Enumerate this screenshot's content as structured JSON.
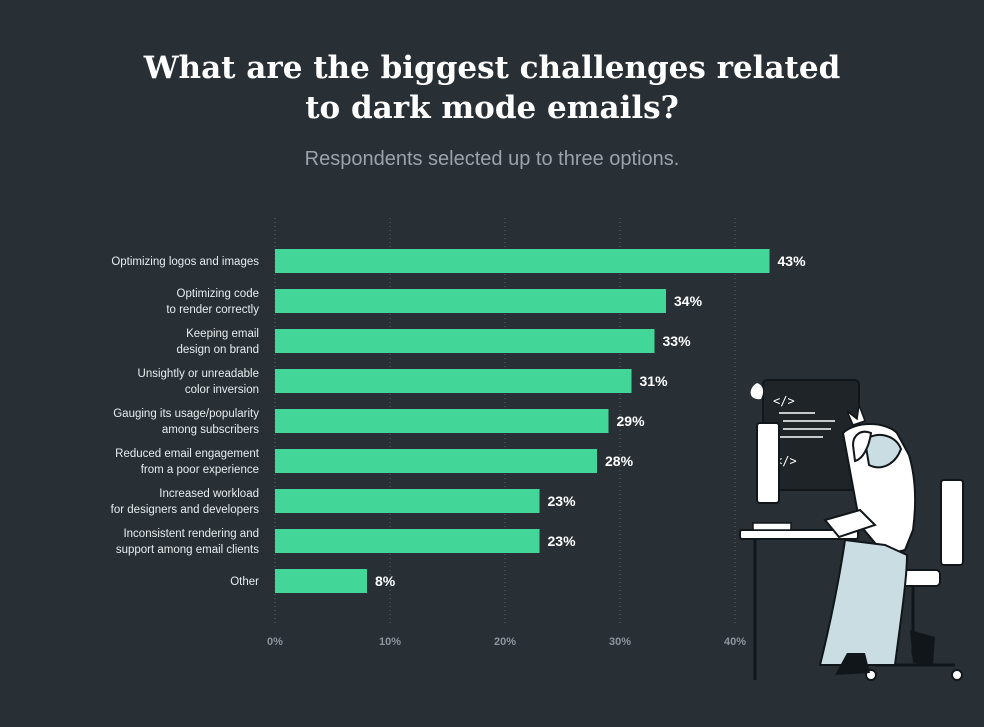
{
  "title_line1": "What are the biggest challenges related",
  "title_line2": "to dark mode emails?",
  "subtitle": "Respondents selected up to three options.",
  "colors": {
    "background": "#283036",
    "bar": "#43d699",
    "grid": "#5a646b"
  },
  "chart_data": {
    "type": "bar",
    "orientation": "horizontal",
    "categories": [
      [
        "Optimizing logos and images"
      ],
      [
        "Optimizing code",
        "to render correctly"
      ],
      [
        "Keeping email",
        "design on brand"
      ],
      [
        "Unsightly or unreadable",
        "color inversion"
      ],
      [
        "Gauging its usage/popularity",
        "among subscribers"
      ],
      [
        "Reduced email engagement",
        "from a poor experience"
      ],
      [
        "Increased workload",
        "for designers and developers"
      ],
      [
        "Inconsistent rendering and",
        "support among email clients"
      ],
      [
        "Other"
      ]
    ],
    "values": [
      43,
      34,
      33,
      31,
      29,
      28,
      23,
      23,
      8
    ],
    "value_labels": [
      "43%",
      "34%",
      "33%",
      "31%",
      "29%",
      "28%",
      "23%",
      "23%",
      "8%"
    ],
    "xticks": [
      0,
      10,
      20,
      30,
      40
    ],
    "xtick_labels": [
      "0%",
      "10%",
      "20%",
      "30%",
      "40%"
    ],
    "xlim": [
      0,
      50
    ],
    "grid": true,
    "legend": "none"
  }
}
